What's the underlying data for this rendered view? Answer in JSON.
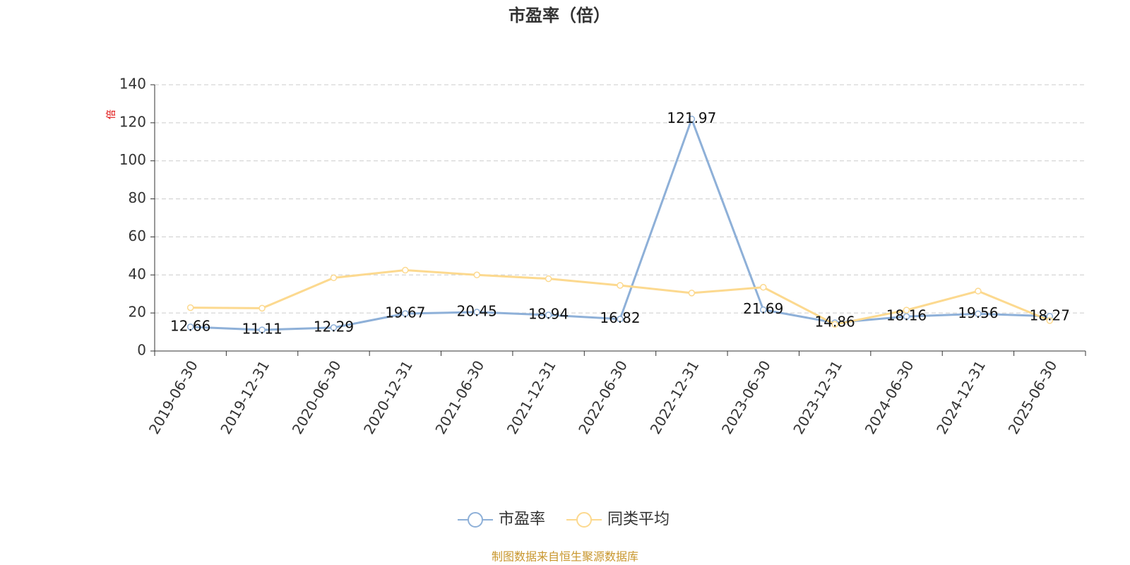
{
  "chart_data": {
    "type": "line",
    "title": "市盈率（倍）",
    "y_label": "倍",
    "categories": [
      "2019-06-30",
      "2019-12-31",
      "2020-06-30",
      "2020-12-31",
      "2021-06-30",
      "2021-12-31",
      "2022-06-30",
      "2022-12-31",
      "2023-06-30",
      "2023-12-31",
      "2024-06-30",
      "2024-12-31",
      "2025-06-30"
    ],
    "series": [
      {
        "name": "市盈率",
        "color": "#8eb0d8",
        "values": [
          12.66,
          11.11,
          12.29,
          19.67,
          20.45,
          18.94,
          16.82,
          121.97,
          21.69,
          14.86,
          18.16,
          19.56,
          18.27
        ],
        "show_labels": true
      },
      {
        "name": "同类平均",
        "color": "#fcd98f",
        "values": [
          22.8,
          22.5,
          38.5,
          42.5,
          40,
          38,
          34.5,
          30.5,
          33.5,
          14,
          21.5,
          31.5,
          16
        ],
        "show_labels": false
      }
    ],
    "ylim": [
      0,
      140
    ],
    "yticks": [
      0,
      20,
      40,
      60,
      80,
      100,
      120,
      140
    ],
    "grid": true,
    "legend": "bottom",
    "source": "制图数据来自恒生聚源数据库"
  }
}
